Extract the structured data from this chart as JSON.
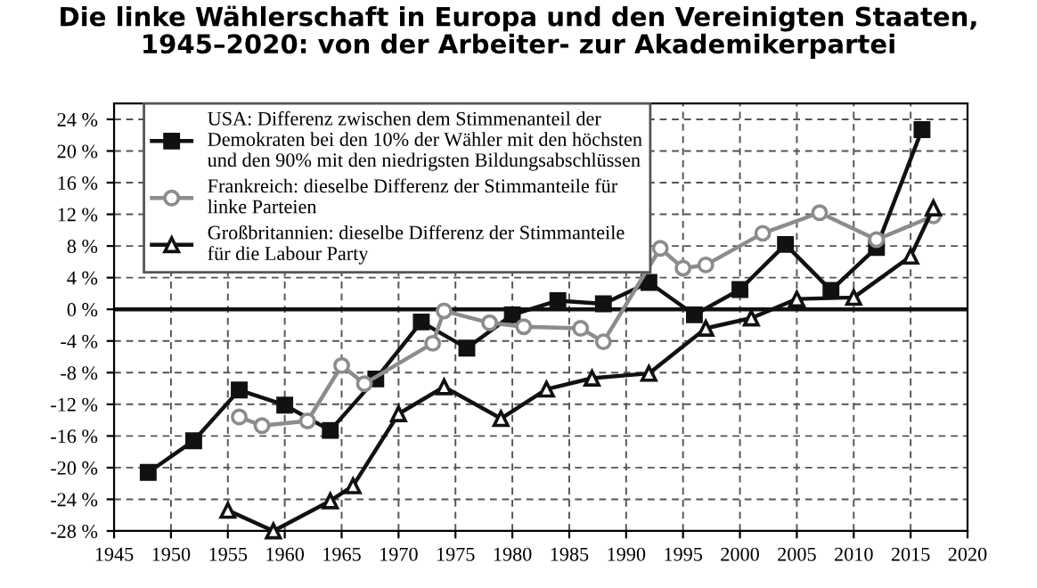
{
  "chart_data": {
    "type": "line",
    "title": "Die linke Wählerschaft in Europa und den Vereinigten Staaten,\n1945–2020: von der Arbeiter- zur Akademikerpartei",
    "series": [
      {
        "name": "USA: Differenz zwischen dem Stimmenanteil der\nDemokraten bei den 10% der Wähler mit den höchsten\nund den 90% mit den niedrigsten Bildungsabschlüssen",
        "color": "#111111",
        "marker": "square",
        "x": [
          1948,
          1952,
          1956,
          1960,
          1964,
          1968,
          1972,
          1976,
          1980,
          1984,
          1988,
          1992,
          1996,
          2000,
          2004,
          2008,
          2012,
          2016
        ],
        "values": [
          -20.6,
          -16.6,
          -10.2,
          -12.1,
          -15.3,
          -8.8,
          -1.6,
          -4.9,
          -0.7,
          1.1,
          0.7,
          3.4,
          -0.7,
          2.5,
          8.2,
          2.4,
          7.8,
          22.7
        ]
      },
      {
        "name": "Frankreich: dieselbe Differenz der Stimmanteile für\nlinke Parteien",
        "color": "#8c8c8c",
        "marker": "circle",
        "x": [
          1956,
          1958,
          1962,
          1965,
          1967,
          1973,
          1974,
          1978,
          1981,
          1986,
          1988,
          1993,
          1995,
          1997,
          2002,
          2007,
          2012,
          2017
        ],
        "values": [
          -13.6,
          -14.7,
          -14.1,
          -7.1,
          -9.4,
          -4.3,
          -0.2,
          -1.7,
          -2.2,
          -2.4,
          -4.1,
          7.7,
          5.2,
          5.6,
          9.6,
          12.2,
          8.8,
          11.8
        ]
      },
      {
        "name": "Großbritannien: dieselbe Differenz der Stimmanteile\nfür die Labour Party",
        "color": "#111111",
        "marker": "triangle",
        "x": [
          1955,
          1959,
          1964,
          1966,
          1970,
          1974,
          1979,
          1983,
          1987,
          1992,
          1997,
          2001,
          2005,
          2010,
          2015,
          2017
        ],
        "values": [
          -25.4,
          -28.0,
          -24.2,
          -22.3,
          -13.2,
          -9.8,
          -13.8,
          -10.1,
          -8.7,
          -8.1,
          -2.4,
          -1.1,
          1.3,
          1.5,
          6.7,
          12.8
        ]
      }
    ],
    "xlim": [
      1945,
      2020
    ],
    "xticks": [
      1945,
      1950,
      1955,
      1960,
      1965,
      1970,
      1975,
      1980,
      1985,
      1990,
      1995,
      2000,
      2005,
      2010,
      2015,
      2020
    ],
    "ylim": [
      -28,
      26
    ],
    "yticks": [
      {
        "value": -28,
        "label": "-28 %"
      },
      {
        "value": -24,
        "label": "-24 %"
      },
      {
        "value": -20,
        "label": "-20 %"
      },
      {
        "value": -16,
        "label": "-16 %"
      },
      {
        "value": -12,
        "label": "-12 %"
      },
      {
        "value": -8,
        "label": "-8 %"
      },
      {
        "value": -4,
        "label": "-4 %"
      },
      {
        "value": 0,
        "label": "0 %"
      },
      {
        "value": 4,
        "label": "4 %"
      },
      {
        "value": 8,
        "label": "8 %"
      },
      {
        "value": 12,
        "label": "12 %"
      },
      {
        "value": 16,
        "label": "16 %"
      },
      {
        "value": 20,
        "label": "20 %"
      },
      {
        "value": 24,
        "label": "24 %"
      }
    ],
    "ref_lines": [
      {
        "axis": "y",
        "value": 0,
        "color": "#111111"
      }
    ],
    "grid": true,
    "legend": "top left",
    "line_style": "solid"
  }
}
